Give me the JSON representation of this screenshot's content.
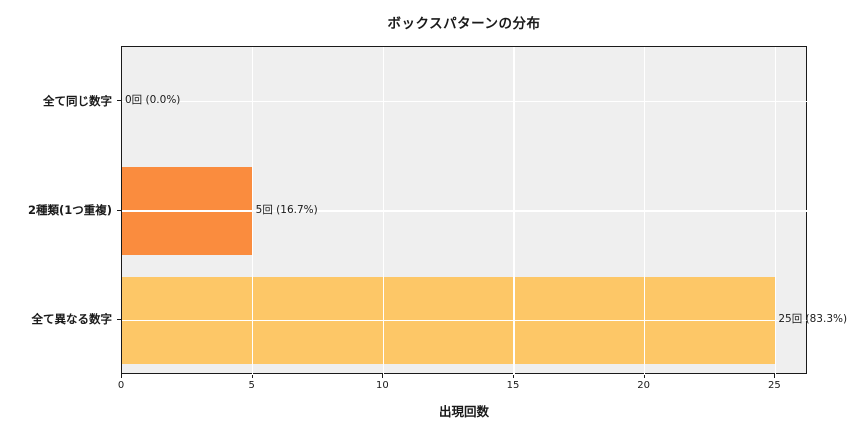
{
  "chart_data": {
    "type": "bar",
    "orientation": "horizontal",
    "title": "ボックスパターンの分布",
    "xlabel": "出現回数",
    "ylabel": "",
    "categories": [
      "全て同じ数字",
      "2種類(1つ重複)",
      "全て異なる数字"
    ],
    "values": [
      0,
      5,
      25
    ],
    "bar_labels": [
      "0回 (0.0%)",
      "5回 (16.7%)",
      "25回 (83.3%)"
    ],
    "bar_colors": [
      null,
      "#fa8c3e",
      "#fdc767"
    ],
    "xticks": [
      0,
      5,
      10,
      15,
      20,
      25
    ],
    "xlim": [
      0,
      26.25
    ],
    "grid": true,
    "grid_color": "#ffffff",
    "plot_bg": "#efefef",
    "spine_color": "#1a1a1a",
    "legend": "none"
  }
}
